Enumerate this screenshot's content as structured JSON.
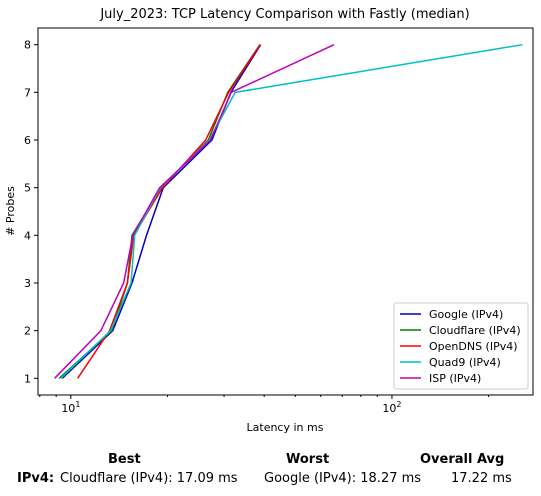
{
  "chart_data": {
    "type": "line",
    "title": "July_2023: TCP Latency Comparison with Fastly (median)",
    "xlabel": "Latency in ms",
    "ylabel": "# Probes",
    "x_scale": "log",
    "xlim": [
      7.9,
      275
    ],
    "ylim": [
      0.65,
      8.35
    ],
    "x_ticks": [
      {
        "value": 10,
        "label": "10",
        "exp": "1"
      },
      {
        "value": 100,
        "label": "10",
        "exp": "2"
      }
    ],
    "y_ticks": [
      1,
      2,
      3,
      4,
      5,
      6,
      7,
      8
    ],
    "grid": false,
    "legend_position": "lower-right",
    "series": [
      {
        "name": "Google (IPv4)",
        "color": "#0000bf",
        "x": [
          9.4,
          13.5,
          15.5,
          17.2,
          19.4,
          27.5,
          31.5,
          39
        ],
        "y": [
          1,
          2,
          3,
          4,
          5,
          6,
          7,
          8
        ]
      },
      {
        "name": "Cloudflare (IPv4)",
        "color": "#008000",
        "x": [
          9.2,
          13.4,
          15.0,
          15.5,
          19.1,
          26.8,
          30.8,
          38.8
        ],
        "y": [
          1,
          2,
          3,
          4,
          5,
          6,
          7,
          8
        ]
      },
      {
        "name": "OpenDNS (IPv4)",
        "color": "#ff0000",
        "x": [
          10.5,
          13.2,
          15.0,
          15.7,
          19.3,
          26.3,
          31.0,
          38.9
        ],
        "y": [
          1,
          2,
          3,
          4,
          5,
          6,
          7,
          8
        ]
      },
      {
        "name": "Quad9 (IPv4)",
        "color": "#00bfbf",
        "x": [
          9.3,
          13.3,
          15.4,
          15.8,
          19.0,
          27.0,
          32.5,
          255
        ],
        "y": [
          1,
          2,
          3,
          4,
          5,
          6,
          7,
          8
        ]
      },
      {
        "name": "ISP (IPv4)",
        "color": "#bf00bf",
        "x": [
          8.9,
          12.4,
          14.6,
          15.6,
          18.9,
          27.2,
          31.6,
          66
        ],
        "y": [
          1,
          2,
          3,
          4,
          5,
          6,
          7,
          8
        ]
      }
    ]
  },
  "summary": {
    "best_header": "Best",
    "worst_header": "Worst",
    "avg_header": "Overall Avg",
    "row_label": "IPv4:",
    "best_value": "Cloudflare (IPv4): 17.09 ms",
    "worst_value": "Google (IPv4): 18.27 ms",
    "avg_value": "17.22 ms"
  }
}
